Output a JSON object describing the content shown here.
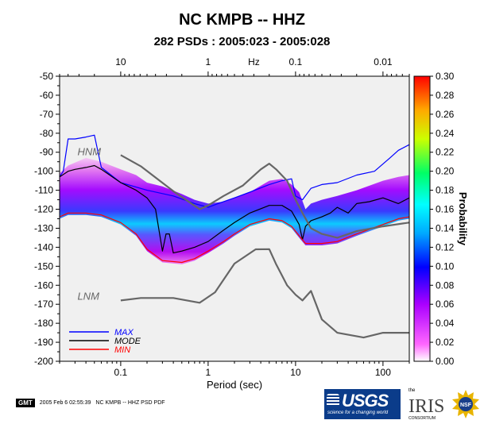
{
  "title": "NC KMPB -- HHZ",
  "subtitle": "282 PSDs : 2005:023 - 2005:028",
  "footer": {
    "gmt": "GMT",
    "timestamp": "2005 Feb  6 02:55:39",
    "caption": "NC KMPB -- HHZ PSD PDF"
  },
  "logos": {
    "usgs": "USGS",
    "usgs_tagline": "science for a changing world",
    "iris_the": "the",
    "iris": "IRIS",
    "iris_consortium": "CONSORTIUM",
    "nsf": "NSF"
  },
  "chart_data": {
    "type": "heatmap",
    "title": "NC KMPB -- HHZ",
    "subtitle": "282 PSDs : 2005:023 - 2005:028",
    "xlabel": "Period (sec)",
    "x2label": "Hz",
    "ylabel_right": "Probability",
    "xscale": "log",
    "xlim": [
      0.02,
      200
    ],
    "ylim": [
      -200,
      -50
    ],
    "x_ticks": [
      0.1,
      1,
      10,
      100
    ],
    "x_tick_labels": [
      "0.1",
      "1",
      "10",
      "100"
    ],
    "x2_ticks": [
      10,
      1,
      0.1,
      0.01
    ],
    "x2_tick_labels": [
      "10",
      "1",
      "0.1",
      "0.01"
    ],
    "y_ticks": [
      -50,
      -60,
      -70,
      -80,
      -90,
      -100,
      -110,
      -120,
      -130,
      -140,
      -150,
      -160,
      -170,
      -180,
      -190,
      -200
    ],
    "colorbar": {
      "range": [
        0,
        0.3
      ],
      "ticks": [
        "0.00",
        "0.02",
        "0.04",
        "0.06",
        "0.08",
        "0.10",
        "0.12",
        "0.14",
        "0.16",
        "0.18",
        "0.20",
        "0.22",
        "0.24",
        "0.26",
        "0.28",
        "0.30"
      ],
      "label": "Probability"
    },
    "annotations": [
      {
        "text": "HNM",
        "x": 0.032,
        "y": -90
      },
      {
        "text": "LNM",
        "x": 0.032,
        "y": -166
      }
    ],
    "legend": {
      "placement": "bottom-left",
      "entries": [
        {
          "name": "MAX",
          "color": "#0000ff"
        },
        {
          "name": "MODE",
          "color": "#000000"
        },
        {
          "name": "MIN",
          "color": "#ff0000"
        }
      ]
    },
    "series": [
      {
        "name": "MAX",
        "color": "#0000ff",
        "x": [
          0.02,
          0.022,
          0.025,
          0.03,
          0.04,
          0.05,
          0.06,
          0.1,
          0.2,
          0.4,
          0.7,
          1,
          1.3,
          2,
          3,
          5,
          7,
          9,
          10,
          12,
          15,
          20,
          30,
          50,
          80,
          120,
          150,
          200
        ],
        "y": [
          -103,
          -100,
          -83,
          -83,
          -82,
          -81,
          -98,
          -106,
          -110,
          -113,
          -117,
          -119,
          -117,
          -114,
          -111,
          -107,
          -105,
          -104,
          -113,
          -115,
          -109,
          -107,
          -106,
          -102,
          -100,
          -93,
          -89,
          -86
        ]
      },
      {
        "name": "MODE",
        "color": "#000000",
        "x": [
          0.02,
          0.025,
          0.03,
          0.04,
          0.05,
          0.06,
          0.1,
          0.15,
          0.2,
          0.25,
          0.3,
          0.33,
          0.36,
          0.4,
          0.5,
          0.7,
          1,
          1.5,
          2,
          3,
          5,
          7,
          9,
          11,
          12,
          13,
          15,
          20,
          25,
          30,
          40,
          50,
          70,
          100,
          150,
          200
        ],
        "y": [
          -103,
          -100,
          -99,
          -98,
          -97,
          -99,
          -106,
          -110,
          -114,
          -120,
          -142,
          -133,
          -133,
          -143,
          -142,
          -140,
          -137,
          -131,
          -127,
          -122,
          -118,
          -118,
          -121,
          -128,
          -136,
          -129,
          -126,
          -124,
          -122,
          -119,
          -122,
          -117,
          -116,
          -114,
          -117,
          -114
        ]
      },
      {
        "name": "MIN",
        "color": "#ff0000",
        "x": [
          0.02,
          0.025,
          0.04,
          0.06,
          0.1,
          0.15,
          0.2,
          0.3,
          0.5,
          0.7,
          1,
          1.5,
          2,
          3,
          5,
          7,
          9,
          11,
          13,
          15,
          20,
          30,
          50,
          100,
          150,
          200
        ],
        "y": [
          -124,
          -122,
          -122,
          -123,
          -127,
          -133,
          -141,
          -147,
          -148,
          -146,
          -142,
          -137,
          -133,
          -128,
          -125,
          -126,
          -129,
          -134,
          -138,
          -138,
          -138,
          -137,
          -133,
          -128,
          -125,
          -124
        ]
      },
      {
        "name": "HNM",
        "color": "#666666",
        "x": [
          0.1,
          0.17,
          0.4,
          0.8,
          1,
          1.5,
          2.5,
          4,
          5,
          6,
          8,
          10,
          12,
          15,
          20,
          30,
          50,
          100,
          200
        ],
        "y": [
          -91.5,
          -97.4,
          -110.5,
          -120,
          -118,
          -113,
          -107.5,
          -99,
          -96,
          -99,
          -105,
          -115,
          -122,
          -130,
          -133,
          -135,
          -131.5,
          -129,
          -127
        ]
      },
      {
        "name": "LNM",
        "color": "#666666",
        "x": [
          0.1,
          0.17,
          0.4,
          0.8,
          1.2,
          2,
          3.5,
          5,
          6,
          8,
          10,
          12,
          15,
          20,
          30,
          60,
          100,
          150,
          200
        ],
        "y": [
          -168,
          -166.7,
          -166.7,
          -169.2,
          -163.7,
          -148.6,
          -141.1,
          -141,
          -149,
          -160,
          -165,
          -168,
          -163,
          -178,
          -185,
          -187.5,
          -185,
          -185,
          -185
        ]
      }
    ],
    "density_band": {
      "x": [
        0.02,
        0.025,
        0.04,
        0.06,
        0.1,
        0.15,
        0.2,
        0.3,
        0.5,
        0.7,
        1,
        1.5,
        2,
        3,
        5,
        7,
        9,
        11,
        13,
        15,
        20,
        30,
        50,
        100,
        150,
        200
      ],
      "upper": [
        -101,
        -97,
        -93,
        -95,
        -99,
        -102,
        -106,
        -108,
        -112,
        -115,
        -117,
        -116,
        -114,
        -111,
        -105,
        -104,
        -107,
        -111,
        -120,
        -117,
        -115,
        -113,
        -110,
        -105,
        -103,
        -102
      ],
      "lower": [
        -125,
        -123,
        -123,
        -124,
        -128,
        -134,
        -142,
        -148,
        -149,
        -147,
        -143,
        -138,
        -134,
        -129,
        -126,
        -127,
        -130,
        -135,
        -139,
        -139,
        -139,
        -138,
        -134,
        -129,
        -126,
        -125
      ]
    }
  }
}
